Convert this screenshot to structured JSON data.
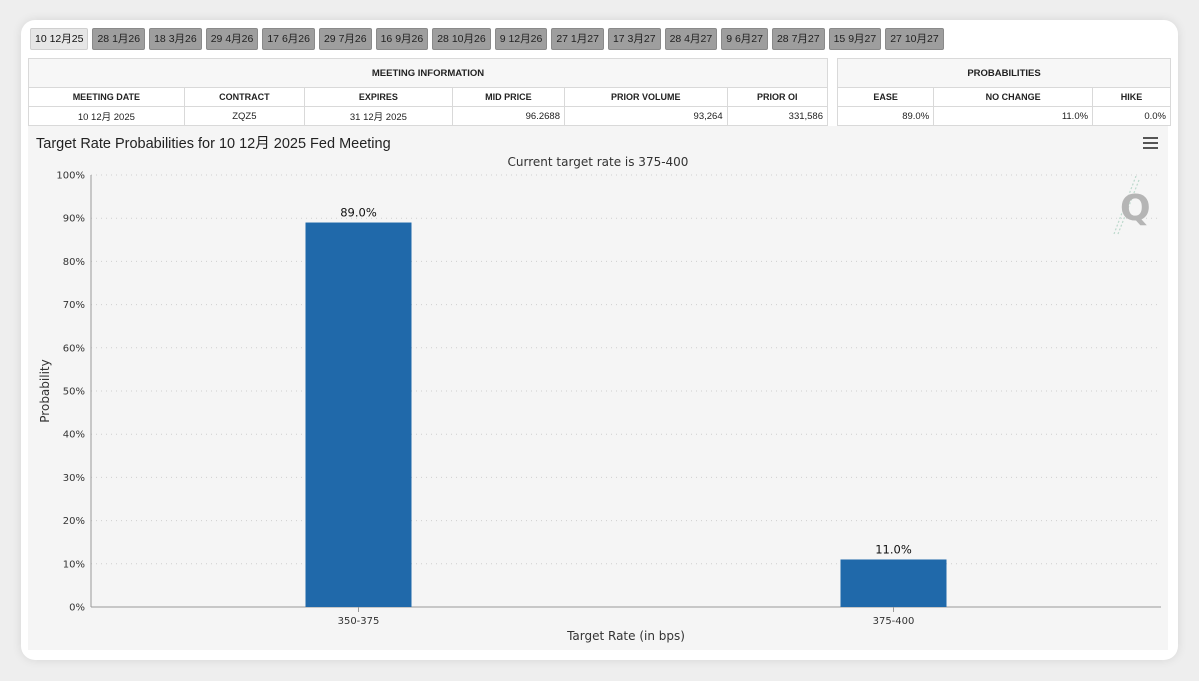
{
  "tabs": [
    "10 12月25",
    "28 1月26",
    "18 3月26",
    "29 4月26",
    "17 6月26",
    "29 7月26",
    "16 9月26",
    "28 10月26",
    "9 12月26",
    "27 1月27",
    "17 3月27",
    "28 4月27",
    "9 6月27",
    "28 7月27",
    "15 9月27",
    "27 10月27"
  ],
  "active_tab": 0,
  "meeting_info": {
    "header": "MEETING INFORMATION",
    "columns": [
      "MEETING DATE",
      "CONTRACT",
      "EXPIRES",
      "MID PRICE",
      "PRIOR VOLUME",
      "PRIOR OI"
    ],
    "row": [
      "10 12月 2025",
      "ZQZ5",
      "31 12月 2025",
      "96.2688",
      "93,264",
      "331,586"
    ]
  },
  "probabilities": {
    "header": "PROBABILITIES",
    "columns": [
      "EASE",
      "NO CHANGE",
      "HIKE"
    ],
    "row": [
      "89.0%",
      "11.0%",
      "0.0%"
    ]
  },
  "chart_data": {
    "type": "bar",
    "title": "Target Rate Probabilities for 10 12月 2025 Fed Meeting",
    "subtitle": "Current target rate is 375-400",
    "xlabel": "Target Rate (in bps)",
    "ylabel": "Probability",
    "categories": [
      "350-375",
      "375-400"
    ],
    "values": [
      89.0,
      11.0
    ],
    "data_labels": [
      "89.0%",
      "11.0%"
    ],
    "ylim": [
      0,
      100
    ],
    "yticks": [
      "0%",
      "10%",
      "20%",
      "30%",
      "40%",
      "50%",
      "60%",
      "70%",
      "80%",
      "90%",
      "100%"
    ],
    "bar_color": "#2069aa",
    "grid": true
  }
}
